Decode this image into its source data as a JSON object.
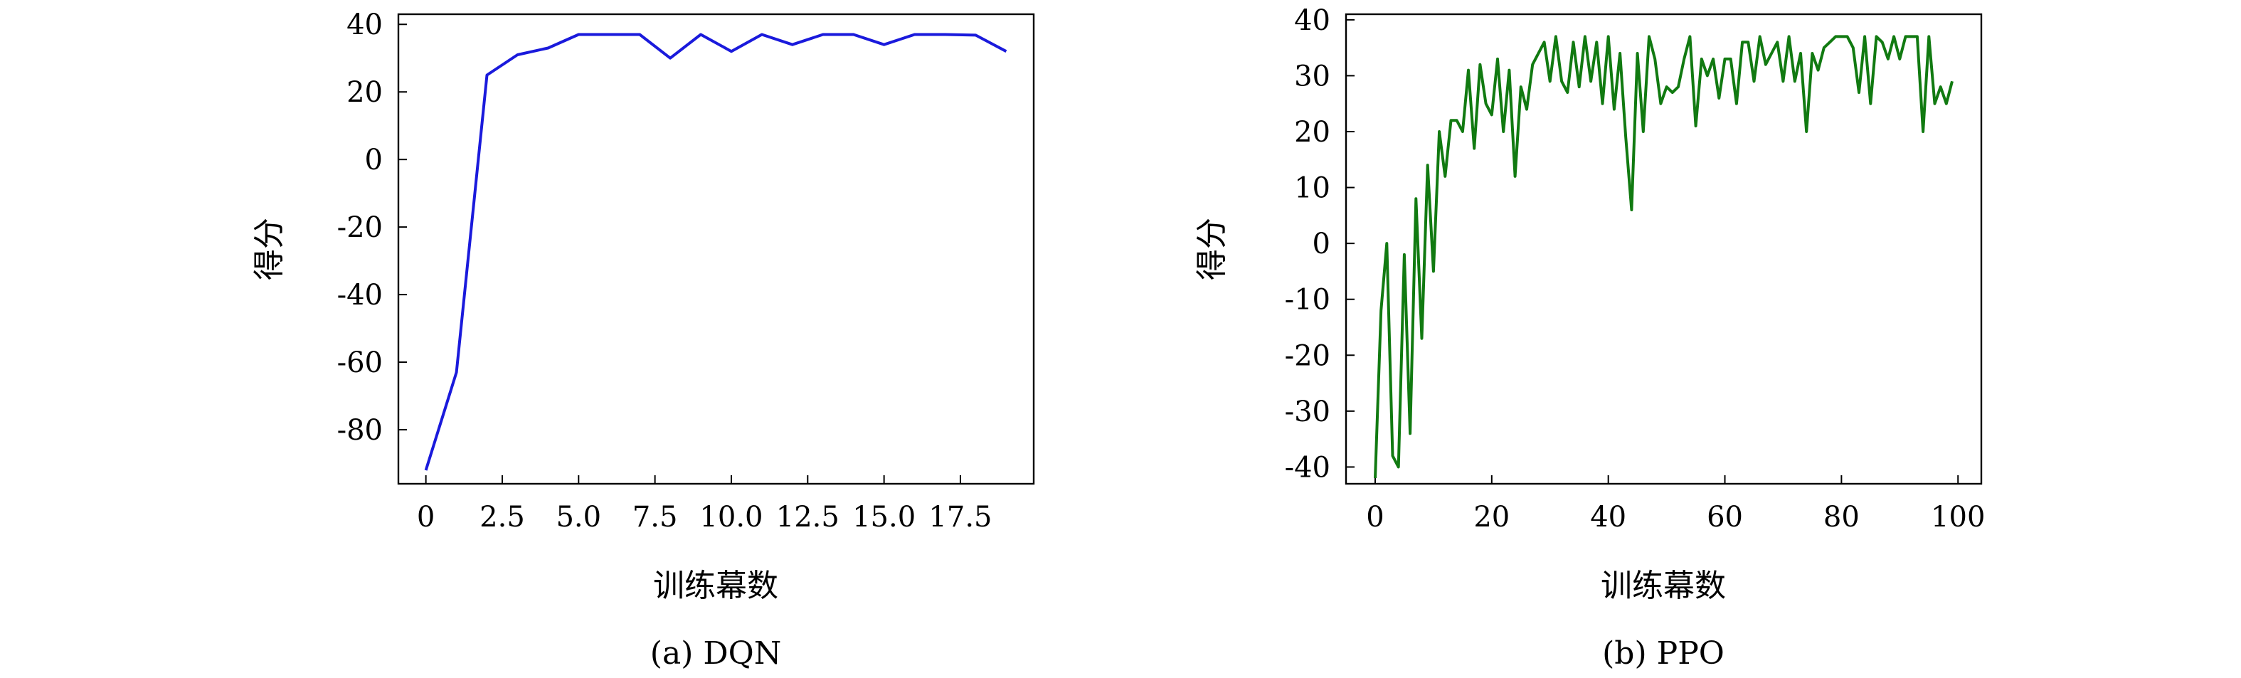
{
  "chart_data": [
    {
      "type": "line",
      "caption": "(a) DQN",
      "xlabel": "训练幕数",
      "ylabel": "得分",
      "xlim": [
        -0.9,
        19.9
      ],
      "ylim": [
        -96,
        43
      ],
      "xticks": [
        0,
        2.5,
        5.0,
        7.5,
        10.0,
        12.5,
        15.0,
        17.5
      ],
      "xtick_labels": [
        "0",
        "2.5",
        "5.0",
        "7.5",
        "10.0",
        "12.5",
        "15.0",
        "17.5"
      ],
      "yticks": [
        40,
        20,
        0,
        -20,
        -40,
        -60,
        -80
      ],
      "ytick_labels": [
        "40",
        "20",
        "0",
        "-20",
        "-40",
        "-60",
        "-80"
      ],
      "grid": false,
      "color": "#1a1adc",
      "series": [
        {
          "x": [
            0,
            1,
            2,
            3,
            4,
            5,
            6,
            7,
            8,
            9,
            10,
            11,
            12,
            13,
            14,
            15,
            16,
            17,
            18,
            19
          ],
          "values": [
            -92,
            -63,
            25,
            31,
            33,
            37,
            37,
            37,
            30,
            37,
            32,
            37,
            34,
            37,
            37,
            34,
            37,
            37,
            36.8,
            32
          ]
        }
      ]
    },
    {
      "type": "line",
      "caption": "(b) PPO",
      "xlabel": "训练幕数",
      "ylabel": "得分",
      "xlim": [
        -5,
        104
      ],
      "ylim": [
        -43,
        41
      ],
      "xticks": [
        0,
        20,
        40,
        60,
        80,
        100
      ],
      "xtick_labels": [
        "0",
        "20",
        "40",
        "60",
        "80",
        "100"
      ],
      "yticks": [
        40,
        30,
        20,
        10,
        0,
        -10,
        -20,
        -30,
        -40
      ],
      "ytick_labels": [
        "40",
        "30",
        "20",
        "10",
        "0",
        "-10",
        "-20",
        "-30",
        "-40"
      ],
      "grid": false,
      "color": "#117a11",
      "series": [
        {
          "x": [
            0,
            1,
            2,
            3,
            4,
            5,
            6,
            7,
            8,
            9,
            10,
            11,
            12,
            13,
            14,
            15,
            16,
            17,
            18,
            19,
            20,
            21,
            22,
            23,
            24,
            25,
            26,
            27,
            28,
            29,
            30,
            31,
            32,
            33,
            34,
            35,
            36,
            37,
            38,
            39,
            40,
            41,
            42,
            43,
            44,
            45,
            46,
            47,
            48,
            49,
            50,
            51,
            52,
            53,
            54,
            55,
            56,
            57,
            58,
            59,
            60,
            61,
            62,
            63,
            64,
            65,
            66,
            67,
            68,
            69,
            70,
            71,
            72,
            73,
            74,
            75,
            76,
            77,
            78,
            79,
            80,
            81,
            82,
            83,
            84,
            85,
            86,
            87,
            88,
            89,
            90,
            91,
            92,
            93,
            94,
            95,
            96,
            97,
            98,
            99
          ],
          "values": [
            -42,
            -12,
            0,
            -38,
            -40,
            -2,
            -34,
            8,
            -17,
            14,
            -5,
            20,
            12,
            22,
            22,
            20,
            31,
            17,
            32,
            25,
            23,
            33,
            20,
            31,
            12,
            28,
            24,
            32,
            34,
            36,
            29,
            37,
            29,
            27,
            36,
            28,
            37,
            29,
            36,
            25,
            37,
            24,
            34,
            19,
            6,
            34,
            20,
            37,
            33,
            25,
            28,
            27,
            28,
            33,
            37,
            21,
            33,
            30,
            33,
            26,
            33,
            33,
            25,
            36,
            36,
            29,
            37,
            32,
            34,
            36,
            29,
            37,
            29,
            34,
            20,
            34,
            31,
            35,
            36,
            37,
            37,
            37,
            35,
            27,
            37,
            25,
            37,
            36,
            33,
            37,
            33,
            37,
            37,
            37,
            20,
            37,
            25,
            28,
            25,
            29
          ]
        }
      ]
    }
  ]
}
